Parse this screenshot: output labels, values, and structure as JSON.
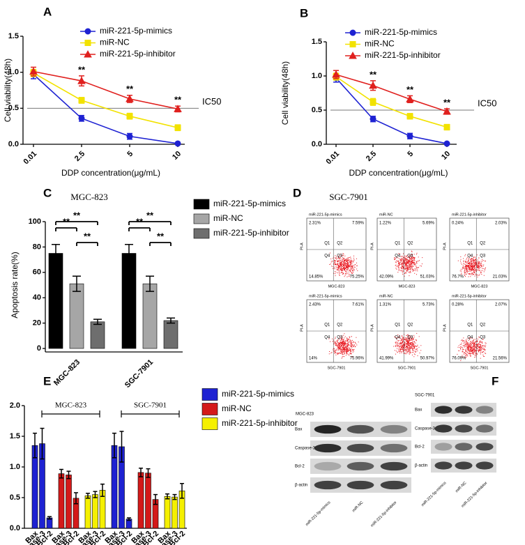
{
  "panels": [
    "A",
    "B",
    "C",
    "D",
    "E",
    "F"
  ],
  "chart_data": [
    {
      "type": "line",
      "x_label": "DDP concentration(μg/mL)",
      "y_label": "Cell viability(48h)",
      "categories": [
        "0.01",
        "2.5",
        "5",
        "10"
      ],
      "ylim": [
        0,
        1.5
      ],
      "yticks": [
        {
          "value": 0,
          "label": "0.0"
        },
        {
          "value": 0.5,
          "label": "0.5"
        },
        {
          "value": 1,
          "label": "1.0"
        },
        {
          "value": 1.5,
          "label": "1.5"
        }
      ],
      "reference_line": {
        "value": 0.5,
        "label": "IC50"
      },
      "significance": [
        null,
        "**",
        "**",
        "**"
      ],
      "series": [
        {
          "name": "miR-221-5p-mimics",
          "color": "#1e22d2",
          "marker": "circle",
          "values": [
            0.97,
            0.36,
            0.11,
            0.01
          ],
          "errors": [
            0.06,
            0.04,
            0.04,
            0.01
          ]
        },
        {
          "name": "miR-NC",
          "color": "#f2e200",
          "marker": "square",
          "values": [
            0.99,
            0.61,
            0.39,
            0.23
          ],
          "errors": [
            0.05,
            0.04,
            0.04,
            0.04
          ]
        },
        {
          "name": "miR-221-5p-inhibitor",
          "color": "#e0201e",
          "marker": "triangle",
          "values": [
            1.01,
            0.88,
            0.63,
            0.49
          ],
          "errors": [
            0.06,
            0.07,
            0.05,
            0.04
          ]
        }
      ]
    },
    {
      "type": "line",
      "x_label": "DDP concentration(μg/mL)",
      "y_label": "Cell viability(48h)",
      "categories": [
        "0.01",
        "2.5",
        "5",
        "10"
      ],
      "ylim": [
        0,
        1.5
      ],
      "yticks": [
        {
          "value": 0,
          "label": "0.0"
        },
        {
          "value": 0.5,
          "label": "0.5"
        },
        {
          "value": 1,
          "label": "1.0"
        },
        {
          "value": 1.5,
          "label": "1.5"
        }
      ],
      "reference_line": {
        "value": 0.5,
        "label": "IC50"
      },
      "significance": [
        null,
        "**",
        "**",
        "**"
      ],
      "series": [
        {
          "name": "miR-221-5p-mimics",
          "color": "#1e22d2",
          "marker": "circle",
          "values": [
            0.97,
            0.37,
            0.12,
            0.01
          ],
          "errors": [
            0.06,
            0.04,
            0.04,
            0.01
          ]
        },
        {
          "name": "miR-NC",
          "color": "#f2e200",
          "marker": "square",
          "values": [
            0.99,
            0.62,
            0.41,
            0.25
          ],
          "errors": [
            0.05,
            0.05,
            0.04,
            0.04
          ]
        },
        {
          "name": "miR-221-5p-inhibitor",
          "color": "#e0201e",
          "marker": "triangle",
          "values": [
            1.02,
            0.86,
            0.66,
            0.48
          ],
          "errors": [
            0.06,
            0.07,
            0.05,
            0.04
          ]
        }
      ]
    },
    {
      "type": "bar",
      "title": "MGC-823",
      "y_label": "Apoptosis rate(%)",
      "categories": [
        "MGC-823",
        "SGC-7901"
      ],
      "ylim": [
        0,
        100
      ],
      "yticks": [
        0,
        20,
        40,
        60,
        80,
        100
      ],
      "significance": [
        "**",
        "**",
        "**",
        "**",
        "**",
        "**"
      ],
      "series": [
        {
          "name": "miR-221-5p-mimics",
          "color": "#000000",
          "values": [
            75,
            75
          ],
          "errors": [
            7,
            7
          ]
        },
        {
          "name": "miR-NC",
          "color": "#a6a6a6",
          "values": [
            51,
            51
          ],
          "errors": [
            6,
            6
          ]
        },
        {
          "name": "miR-221-5p-inhibitor",
          "color": "#6e6e6e",
          "values": [
            21,
            22
          ],
          "errors": [
            2,
            2
          ]
        }
      ]
    },
    {
      "type": "bar",
      "group_labels": [
        "MGC-823",
        "SGC-7901"
      ],
      "categories": [
        "Bax",
        "Caspase-3",
        "Bcl-2",
        "Bax",
        "Caspase-3",
        "Bcl-2",
        "Bax",
        "Caspase-3",
        "Bcl-2",
        "Bax",
        "Caspase-3",
        "Bcl-2",
        "Bax",
        "Caspase-3",
        "Bcl-2",
        "Bax",
        "Caspase-3",
        "Bcl-2"
      ],
      "ylim": [
        0,
        2
      ],
      "yticks": [
        {
          "value": 0,
          "label": "0.0"
        },
        {
          "value": 0.5,
          "label": "0.5"
        },
        {
          "value": 1,
          "label": "1.0"
        },
        {
          "value": 1.5,
          "label": "1.5"
        },
        {
          "value": 2,
          "label": "2.0"
        }
      ],
      "series": [
        {
          "name": "miR-221-5p-mimics",
          "color": "#1e22d2",
          "values": [
            1.35,
            1.38,
            0.17,
            null,
            null,
            null,
            null,
            null,
            null,
            1.35,
            1.33,
            0.15,
            null,
            null,
            null,
            null,
            null,
            null
          ],
          "errors": [
            0.2,
            0.25,
            0.02,
            null,
            null,
            null,
            null,
            null,
            null,
            0.2,
            0.25,
            0.02,
            null,
            null,
            null,
            null,
            null,
            null
          ]
        },
        {
          "name": "miR-NC",
          "color": "#d41a1a",
          "values": [
            null,
            null,
            null,
            0.89,
            0.87,
            0.49,
            null,
            null,
            null,
            null,
            null,
            null,
            0.91,
            0.9,
            0.47,
            null,
            null,
            null
          ],
          "errors": [
            null,
            null,
            null,
            0.07,
            0.06,
            0.09,
            null,
            null,
            null,
            null,
            null,
            null,
            0.07,
            0.07,
            0.08,
            null,
            null,
            null
          ]
        },
        {
          "name": "miR-221-5p-inhibitor",
          "color": "#f5f000",
          "values": [
            null,
            null,
            null,
            null,
            null,
            null,
            0.53,
            0.55,
            0.62,
            null,
            null,
            null,
            null,
            null,
            null,
            0.52,
            0.51,
            0.61
          ],
          "errors": [
            null,
            null,
            null,
            null,
            null,
            null,
            0.04,
            0.05,
            0.1,
            null,
            null,
            null,
            null,
            null,
            null,
            0.04,
            0.04,
            0.12
          ]
        }
      ]
    }
  ],
  "flow_cytometry": {
    "title": "SGC-7901",
    "ylabel": "PI-A",
    "quadrant_names": [
      "Q1",
      "Q2",
      "Q4",
      "Q3"
    ],
    "plots": [
      {
        "name": "miR-221-5p-mimics",
        "xlabel": "MGC-823",
        "quadrants": [
          "2.31%",
          "7.59%",
          "14.85%",
          "75.25%"
        ]
      },
      {
        "name": "miR-NC",
        "xlabel": "MGC-823",
        "quadrants": [
          "1.22%",
          "5.69%",
          "42.09%",
          "51.03%"
        ]
      },
      {
        "name": "miR-221-5p-inhibitor",
        "xlabel": "MGC-823",
        "quadrants": [
          "0.24%",
          "2.03%",
          "76.7%",
          "21.03%"
        ]
      },
      {
        "name": "miR-221-5p-mimics",
        "xlabel": "SGC-7901",
        "quadrants": [
          "2.43%",
          "7.61%",
          "14%",
          "75.96%"
        ]
      },
      {
        "name": "miR-NC",
        "xlabel": "SGC-7901",
        "quadrants": [
          "1.31%",
          "5.73%",
          "41.99%",
          "50.97%"
        ]
      },
      {
        "name": "miR-221-5p-inhibitor",
        "xlabel": "SGC-7901",
        "quadrants": [
          "0.28%",
          "2.07%",
          "76.09%",
          "21.56%"
        ]
      }
    ]
  },
  "western_blot": {
    "blots": [
      {
        "title": "MGC-823",
        "rows": [
          "Bax",
          "Caspase-3",
          "Bcl-2",
          "β-actin"
        ],
        "lanes": [
          "miR-221-5p-mimics",
          "miR-NC",
          "miR-221-5p-inhibitor"
        ]
      },
      {
        "title": "SGC-7901",
        "rows": [
          "Bax",
          "Caspase-3",
          "Bcl-2",
          "β-actin"
        ],
        "lanes": [
          "miR-221-5p-mimics",
          "miR-NC",
          "miR-221-5p-inhibitor"
        ]
      }
    ]
  }
}
